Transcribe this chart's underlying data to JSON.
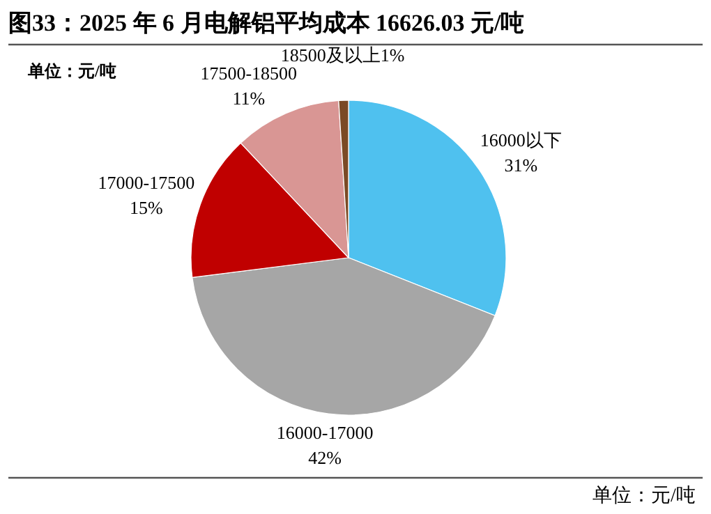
{
  "chart_data": {
    "type": "pie",
    "title": "图33：2025 年 6 月电解铝平均成本 16626.03 元/吨",
    "categories": [
      "16000以下",
      "16000-17000",
      "17000-17500",
      "17500-18500",
      "18500及以上"
    ],
    "values": [
      31,
      42,
      15,
      11,
      1
    ],
    "value_labels": [
      "31%",
      "42%",
      "15%",
      "11%",
      "1%"
    ],
    "colors": [
      "#4fc1ef",
      "#a6a6a6",
      "#c00000",
      "#d99694",
      "#7b4a25"
    ],
    "annotations": [
      "单位：元/吨",
      "单位：元/吨"
    ]
  }
}
